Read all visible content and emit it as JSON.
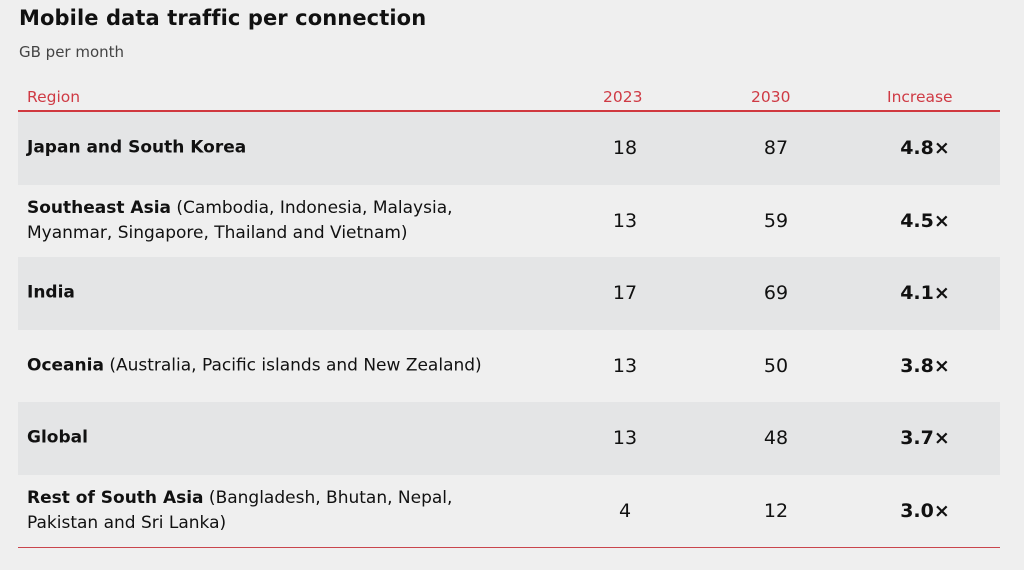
{
  "title": "Mobile data traffic per connection",
  "subtitle": "GB per month",
  "headers": {
    "region": "Region",
    "y2023": "2023",
    "y2030": "2030",
    "increase": "Increase"
  },
  "rows": [
    {
      "name": "Japan and South Korea",
      "detail": "",
      "y2023": "18",
      "y2030": "87",
      "increase": "4.8×"
    },
    {
      "name": "Southeast Asia",
      "detail": " (Cambodia, Indonesia, Malaysia, Myanmar, Singapore, Thailand and Vietnam)",
      "y2023": "13",
      "y2030": "59",
      "increase": "4.5×"
    },
    {
      "name": "India",
      "detail": "",
      "y2023": "17",
      "y2030": "69",
      "increase": "4.1×"
    },
    {
      "name": "Oceania",
      "detail": " (Australia, Pacific islands and New Zealand)",
      "y2023": "13",
      "y2030": "50",
      "increase": "3.8×"
    },
    {
      "name": "Global",
      "detail": "",
      "y2023": "13",
      "y2030": "48",
      "increase": "3.7×"
    },
    {
      "name": "Rest of South Asia",
      "detail": " (Bangladesh, Bhutan, Nepal, Pakistan and Sri Lanka)",
      "y2023": "4",
      "y2030": "12",
      "increase": "3.0×"
    }
  ]
}
